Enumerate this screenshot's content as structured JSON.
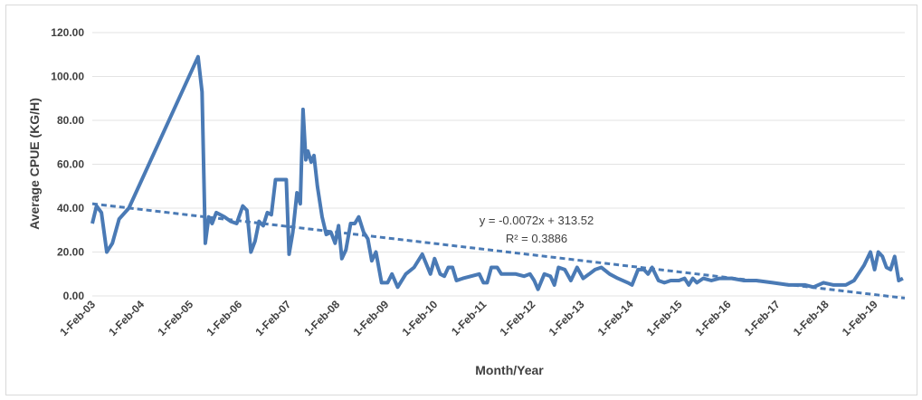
{
  "chart_data": {
    "type": "line",
    "title": "",
    "xlabel": "Month/Year",
    "ylabel": "Average CPUE (KG/H)",
    "ylim": [
      0,
      120
    ],
    "yticks": [
      "0.00",
      "20.00",
      "40.00",
      "60.00",
      "80.00",
      "100.00",
      "120.00"
    ],
    "xticks": [
      "1-Feb-03",
      "1-Feb-04",
      "1-Feb-05",
      "1-Feb-06",
      "1-Feb-07",
      "1-Feb-08",
      "1-Feb-09",
      "1-Feb-10",
      "1-Feb-11",
      "1-Feb-12",
      "1-Feb-13",
      "1-Feb-14",
      "1-Feb-15",
      "1-Feb-16",
      "1-Feb-17",
      "1-Feb-18",
      "1-Feb-19"
    ],
    "xlim": [
      "2003-02-01",
      "2019-09-15"
    ],
    "grid": true,
    "colors": {
      "series": "#4a7ab5",
      "trend": "#4a7ab5",
      "grid": "#e3e3e3"
    },
    "series": [
      {
        "values": [
          [
            "2003-02-01",
            33
          ],
          [
            "2003-03-05",
            41
          ],
          [
            "2003-04-10",
            38
          ],
          [
            "2003-05-20",
            20
          ],
          [
            "2003-07-01",
            24
          ],
          [
            "2003-08-20",
            35
          ],
          [
            "2003-11-01",
            40
          ],
          [
            "2005-04-01",
            109
          ],
          [
            "2005-05-01",
            93
          ],
          [
            "2005-05-25",
            24
          ],
          [
            "2005-06-20",
            36
          ],
          [
            "2005-07-15",
            33
          ],
          [
            "2005-08-15",
            38
          ],
          [
            "2005-10-15",
            36
          ],
          [
            "2005-12-01",
            34
          ],
          [
            "2006-01-15",
            33
          ],
          [
            "2006-02-01",
            36
          ],
          [
            "2006-03-01",
            41
          ],
          [
            "2006-04-01",
            39
          ],
          [
            "2006-05-01",
            20
          ],
          [
            "2006-06-01",
            25
          ],
          [
            "2006-07-01",
            34
          ],
          [
            "2006-08-01",
            32
          ],
          [
            "2006-09-01",
            38
          ],
          [
            "2006-10-01",
            37
          ],
          [
            "2006-11-01",
            53
          ],
          [
            "2007-01-20",
            53
          ],
          [
            "2007-02-10",
            19
          ],
          [
            "2007-03-10",
            29
          ],
          [
            "2007-04-10",
            47
          ],
          [
            "2007-05-05",
            42
          ],
          [
            "2007-05-25",
            85
          ],
          [
            "2007-06-15",
            62
          ],
          [
            "2007-07-01",
            66
          ],
          [
            "2007-07-25",
            61
          ],
          [
            "2007-08-15",
            64
          ],
          [
            "2007-09-10",
            50
          ],
          [
            "2007-10-15",
            36
          ],
          [
            "2007-11-15",
            28
          ],
          [
            "2007-12-20",
            29
          ],
          [
            "2008-01-20",
            24
          ],
          [
            "2008-02-15",
            32
          ],
          [
            "2008-03-10",
            17
          ],
          [
            "2008-04-10",
            21
          ],
          [
            "2008-05-15",
            33
          ],
          [
            "2008-06-15",
            33
          ],
          [
            "2008-07-15",
            36
          ],
          [
            "2008-08-20",
            29
          ],
          [
            "2008-09-20",
            26
          ],
          [
            "2008-10-20",
            16
          ],
          [
            "2008-11-20",
            20
          ],
          [
            "2009-01-01",
            6
          ],
          [
            "2009-02-15",
            6
          ],
          [
            "2009-03-20",
            10
          ],
          [
            "2009-05-01",
            4
          ],
          [
            "2009-07-01",
            10
          ],
          [
            "2009-09-01",
            13
          ],
          [
            "2009-11-01",
            19
          ],
          [
            "2010-01-01",
            10
          ],
          [
            "2010-02-01",
            17
          ],
          [
            "2010-03-15",
            10
          ],
          [
            "2010-04-15",
            9
          ],
          [
            "2010-05-15",
            13
          ],
          [
            "2010-06-15",
            13
          ],
          [
            "2010-07-15",
            7
          ],
          [
            "2010-09-01",
            8
          ],
          [
            "2010-11-01",
            9
          ],
          [
            "2011-01-01",
            10
          ],
          [
            "2011-02-01",
            6
          ],
          [
            "2011-03-01",
            6
          ],
          [
            "2011-04-01",
            13
          ],
          [
            "2011-05-15",
            13
          ],
          [
            "2011-06-15",
            10
          ],
          [
            "2011-08-01",
            10
          ],
          [
            "2011-10-01",
            10
          ],
          [
            "2011-12-01",
            9
          ],
          [
            "2012-01-15",
            10
          ],
          [
            "2012-02-15",
            7
          ],
          [
            "2012-03-15",
            3
          ],
          [
            "2012-05-01",
            10
          ],
          [
            "2012-06-15",
            9
          ],
          [
            "2012-07-15",
            5
          ],
          [
            "2012-08-15",
            13
          ],
          [
            "2012-10-01",
            12
          ],
          [
            "2012-11-15",
            7
          ],
          [
            "2013-01-01",
            13
          ],
          [
            "2013-02-15",
            8
          ],
          [
            "2013-04-01",
            10
          ],
          [
            "2013-05-15",
            12
          ],
          [
            "2013-07-01",
            13
          ],
          [
            "2013-09-01",
            10
          ],
          [
            "2013-11-01",
            8
          ],
          [
            "2014-01-15",
            6
          ],
          [
            "2014-02-15",
            5
          ],
          [
            "2014-04-01",
            12
          ],
          [
            "2014-05-15",
            12
          ],
          [
            "2014-06-15",
            10
          ],
          [
            "2014-07-15",
            13
          ],
          [
            "2014-09-01",
            7
          ],
          [
            "2014-10-15",
            6
          ],
          [
            "2014-12-01",
            7
          ],
          [
            "2015-02-01",
            7
          ],
          [
            "2015-03-15",
            8
          ],
          [
            "2015-04-15",
            5
          ],
          [
            "2015-05-15",
            8
          ],
          [
            "2015-06-15",
            6
          ],
          [
            "2015-08-01",
            8
          ],
          [
            "2015-10-01",
            7
          ],
          [
            "2015-12-01",
            8
          ],
          [
            "2016-03-01",
            8
          ],
          [
            "2016-06-01",
            7
          ],
          [
            "2016-09-01",
            7
          ],
          [
            "2017-01-01",
            6
          ],
          [
            "2017-05-01",
            5
          ],
          [
            "2017-09-01",
            5
          ],
          [
            "2017-11-01",
            4
          ],
          [
            "2018-01-15",
            6
          ],
          [
            "2018-04-01",
            5
          ],
          [
            "2018-07-01",
            5
          ],
          [
            "2018-09-01",
            7
          ],
          [
            "2018-11-15",
            14
          ],
          [
            "2019-01-01",
            20
          ],
          [
            "2019-02-01",
            12
          ],
          [
            "2019-03-01",
            20
          ],
          [
            "2019-04-01",
            18
          ],
          [
            "2019-05-01",
            13
          ],
          [
            "2019-06-01",
            12
          ],
          [
            "2019-07-01",
            18
          ],
          [
            "2019-08-01",
            7
          ],
          [
            "2019-09-01",
            8
          ]
        ]
      }
    ],
    "trendline": {
      "type": "linear",
      "equation": "y = -0.0072x + 313.52",
      "r2": "R² = 0.3886",
      "start": [
        "2003-02-01",
        42
      ],
      "end": [
        "2019-09-15",
        -1
      ]
    }
  }
}
